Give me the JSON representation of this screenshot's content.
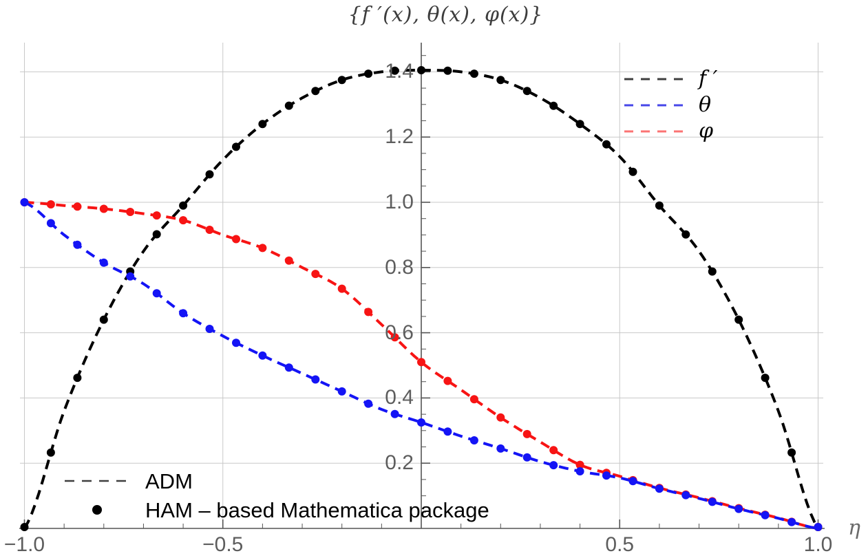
{
  "title": {
    "text": "{f ′(x), θ(x), φ(x)}"
  },
  "axis": {
    "x_label": "η"
  },
  "legend_series": {
    "items": [
      {
        "label": "f ′",
        "color": "#3f3f3f"
      },
      {
        "label": "θ",
        "color": "#4646e8"
      },
      {
        "label": "φ",
        "color": "#fb7373"
      }
    ]
  },
  "legend_methods": {
    "items": [
      {
        "label": "ADM",
        "style": "dashed",
        "color": "#3f3f3f"
      },
      {
        "label": "HAM – based Mathematica package",
        "style": "dots",
        "color": "#000000"
      }
    ]
  },
  "chart_data": {
    "type": "line",
    "title": "{f ′(x), θ(x), φ(x)}",
    "xlabel": "η",
    "ylabel": "",
    "xlim": [
      -1,
      1
    ],
    "ylim": [
      0,
      1.49
    ],
    "grid": true,
    "x_ticks": [
      -1.0,
      -0.5,
      0.5,
      1.0
    ],
    "x_tick_labels": [
      "−1.0",
      "−0.5",
      "0.5",
      "1.0"
    ],
    "x_minor_step": 0.1,
    "y_ticks": [
      0.2,
      0.4,
      0.6,
      0.8,
      1.0,
      1.2,
      1.4
    ],
    "y_tick_labels": [
      "0.2",
      "0.4",
      "0.6",
      "0.8",
      "1.0",
      "1.2",
      "1.4"
    ],
    "y_minor_step": 0.05,
    "x": [
      -1,
      -0.9,
      -0.8,
      -0.7,
      -0.6,
      -0.5,
      -0.4,
      -0.3,
      -0.2,
      -0.1,
      0,
      0.1,
      0.2,
      0.3,
      0.4,
      0.5,
      0.6,
      0.7,
      0.8,
      0.9,
      1
    ],
    "series": [
      {
        "name": "f′",
        "color": "#000000",
        "values": [
          0,
          0.36,
          0.64,
          0.85,
          0.99,
          1.13,
          1.24,
          1.32,
          1.375,
          1.4,
          1.405,
          1.4,
          1.375,
          1.32,
          1.24,
          1.14,
          0.99,
          0.85,
          0.64,
          0.36,
          0
        ]
      },
      {
        "name": "φ",
        "color": "#f71414",
        "values": [
          1.0,
          0.99,
          0.98,
          0.965,
          0.945,
          0.9,
          0.86,
          0.8,
          0.735,
          0.625,
          0.51,
          0.425,
          0.34,
          0.265,
          0.195,
          0.16,
          0.124,
          0.094,
          0.062,
          0.032,
          0
        ]
      },
      {
        "name": "θ",
        "color": "#1414f5",
        "values": [
          1.0,
          0.9,
          0.815,
          0.75,
          0.66,
          0.59,
          0.53,
          0.475,
          0.42,
          0.365,
          0.325,
          0.283,
          0.245,
          0.205,
          0.175,
          0.155,
          0.122,
          0.092,
          0.06,
          0.031,
          0
        ]
      }
    ],
    "methods": [
      {
        "name": "ADM",
        "style": "dashed"
      },
      {
        "name": "HAM – based Mathematica package",
        "style": "dots",
        "marker_x_step": 0.0667
      }
    ],
    "legend_position": [
      "top-right",
      "bottom-left"
    ]
  }
}
